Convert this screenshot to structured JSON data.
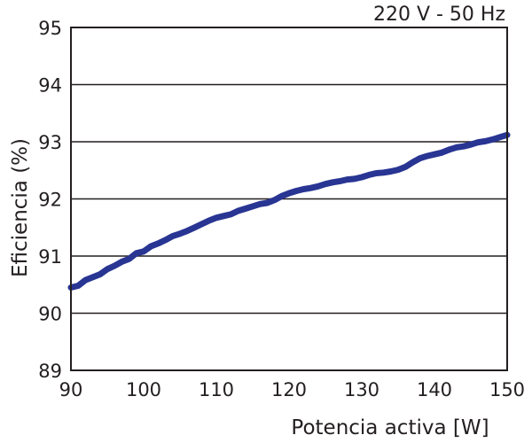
{
  "chart_data": {
    "type": "line",
    "title": "",
    "annotation": "220 V - 50 Hz",
    "xlabel": "Potencia activa [W]",
    "ylabel": "Eficiencia (%)",
    "xlim": [
      90,
      150
    ],
    "ylim": [
      89,
      95
    ],
    "x_ticks": [
      90,
      100,
      110,
      120,
      130,
      140,
      150
    ],
    "y_ticks": [
      89,
      90,
      91,
      92,
      93,
      94,
      95
    ],
    "grid": "horizontal",
    "series_color": "#283593",
    "series": [
      {
        "x": [
          90,
          91,
          92,
          93,
          94,
          95,
          96,
          97,
          98,
          99,
          100,
          101,
          102,
          103,
          104,
          105,
          106,
          107,
          108,
          109,
          110,
          111,
          112,
          113,
          114,
          115,
          116,
          117,
          118,
          119,
          120,
          121,
          122,
          123,
          124,
          125,
          126,
          127,
          128,
          129,
          130,
          131,
          132,
          133,
          134,
          135,
          136,
          137,
          138,
          139,
          140,
          141,
          142,
          143,
          144,
          145,
          146,
          147,
          148,
          149,
          150
        ],
        "y": [
          90.45,
          90.48,
          90.58,
          90.63,
          90.68,
          90.77,
          90.83,
          90.9,
          90.95,
          91.05,
          91.08,
          91.17,
          91.22,
          91.28,
          91.35,
          91.39,
          91.44,
          91.5,
          91.56,
          91.62,
          91.67,
          91.7,
          91.73,
          91.79,
          91.83,
          91.87,
          91.91,
          91.93,
          91.98,
          92.05,
          92.1,
          92.14,
          92.17,
          92.19,
          92.22,
          92.26,
          92.29,
          92.31,
          92.34,
          92.35,
          92.38,
          92.42,
          92.45,
          92.46,
          92.48,
          92.51,
          92.56,
          92.64,
          92.71,
          92.75,
          92.78,
          92.81,
          92.86,
          92.9,
          92.92,
          92.95,
          92.99,
          93.01,
          93.04,
          93.08,
          93.12
        ]
      }
    ]
  }
}
